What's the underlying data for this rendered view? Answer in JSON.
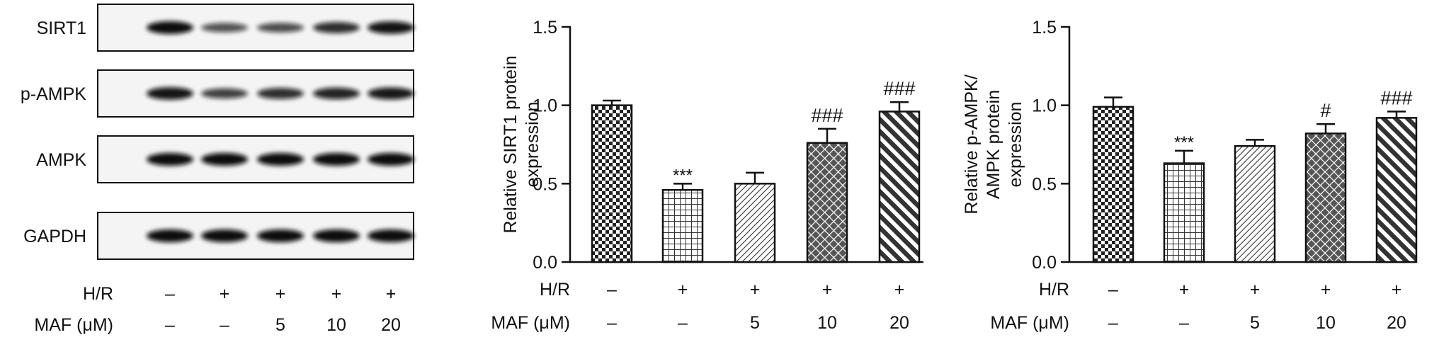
{
  "blot": {
    "proteins": [
      {
        "label": "SIRT1",
        "intensity": [
          1.0,
          0.46,
          0.5,
          0.75,
          0.95
        ]
      },
      {
        "label": "p-AMPK",
        "intensity": [
          0.95,
          0.6,
          0.75,
          0.82,
          0.9
        ]
      },
      {
        "label": "AMPK",
        "intensity": [
          1.0,
          1.0,
          1.0,
          1.0,
          1.0
        ]
      },
      {
        "label": "GAPDH",
        "intensity": [
          1.0,
          1.0,
          1.0,
          1.0,
          1.0
        ]
      }
    ],
    "conditions": [
      {
        "label": "H/R",
        "values": [
          "–",
          "+",
          "+",
          "+",
          "+"
        ]
      },
      {
        "label": "MAF (μM)",
        "values": [
          "–",
          "–",
          "5",
          "10",
          "20"
        ]
      }
    ]
  },
  "patterns": [
    "checker",
    "grid",
    "diag",
    "cross",
    "thick-diag"
  ],
  "chart_data": [
    {
      "type": "bar",
      "title": "",
      "ylabel": [
        "Relative SIRT1 protein",
        "expression"
      ],
      "ylim": [
        0,
        1.5
      ],
      "yticks": [
        "0.0",
        "0.5",
        "1.0",
        "1.5"
      ],
      "categories": [
        "1",
        "2",
        "3",
        "4",
        "5"
      ],
      "values": [
        1.0,
        0.46,
        0.5,
        0.76,
        0.96
      ],
      "errors": [
        0.03,
        0.04,
        0.07,
        0.09,
        0.06
      ],
      "annotations": [
        "",
        "***",
        "",
        "###",
        "###"
      ],
      "conditions": [
        {
          "label": "H/R",
          "values": [
            "–",
            "+",
            "+",
            "+",
            "+"
          ]
        },
        {
          "label": "MAF (μM)",
          "values": [
            "–",
            "–",
            "5",
            "10",
            "20"
          ]
        }
      ]
    },
    {
      "type": "bar",
      "title": "",
      "ylabel": [
        "Relative p-AMPK/",
        "AMPK protein",
        "expression"
      ],
      "ylim": [
        0,
        1.5
      ],
      "yticks": [
        "0.0",
        "0.5",
        "1.0",
        "1.5"
      ],
      "categories": [
        "1",
        "2",
        "3",
        "4",
        "5"
      ],
      "values": [
        0.99,
        0.63,
        0.74,
        0.82,
        0.92
      ],
      "errors": [
        0.06,
        0.08,
        0.04,
        0.06,
        0.04
      ],
      "annotations": [
        "",
        "***",
        "",
        "#",
        "###"
      ],
      "conditions": [
        {
          "label": "H/R",
          "values": [
            "–",
            "+",
            "+",
            "+",
            "+"
          ]
        },
        {
          "label": "MAF (μM)",
          "values": [
            "–",
            "–",
            "5",
            "10",
            "20"
          ]
        }
      ]
    }
  ]
}
